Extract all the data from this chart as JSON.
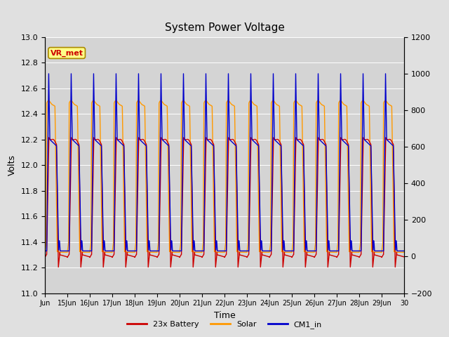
{
  "title": "System Power Voltage",
  "xlabel": "Time",
  "ylabel": "Volts",
  "ylim_left": [
    11.0,
    13.0
  ],
  "ylim_right": [
    -200,
    1200
  ],
  "yticks_left": [
    11.0,
    11.2,
    11.4,
    11.6,
    11.8,
    12.0,
    12.2,
    12.4,
    12.6,
    12.8,
    13.0
  ],
  "yticks_right": [
    -200,
    0,
    200,
    400,
    600,
    800,
    1000,
    1200
  ],
  "xtick_labels": [
    "Jun",
    "15Jun",
    "16Jun",
    "17Jun",
    "18Jun",
    "19Jun",
    "20Jun",
    "21Jun",
    "22Jun",
    "23Jun",
    "24Jun",
    "25Jun",
    "26Jun",
    "27Jun",
    "28Jun",
    "29Jun",
    "30"
  ],
  "n_days": 16,
  "fig_facecolor": "#e0e0e0",
  "plot_facecolor": "#d4d4d4",
  "legend_labels": [
    "23x Battery",
    "Solar",
    "CM1_in"
  ],
  "legend_colors": [
    "#cc0000",
    "#ff9900",
    "#0000cc"
  ],
  "vr_met_bg": "#ffff88",
  "vr_met_border": "#aa8800",
  "vr_met_text_color": "#cc0000",
  "battery_color": "#cc0000",
  "solar_color": "#ff9900",
  "cm1_color": "#0000cc",
  "grid_color": "#bbbbbb"
}
